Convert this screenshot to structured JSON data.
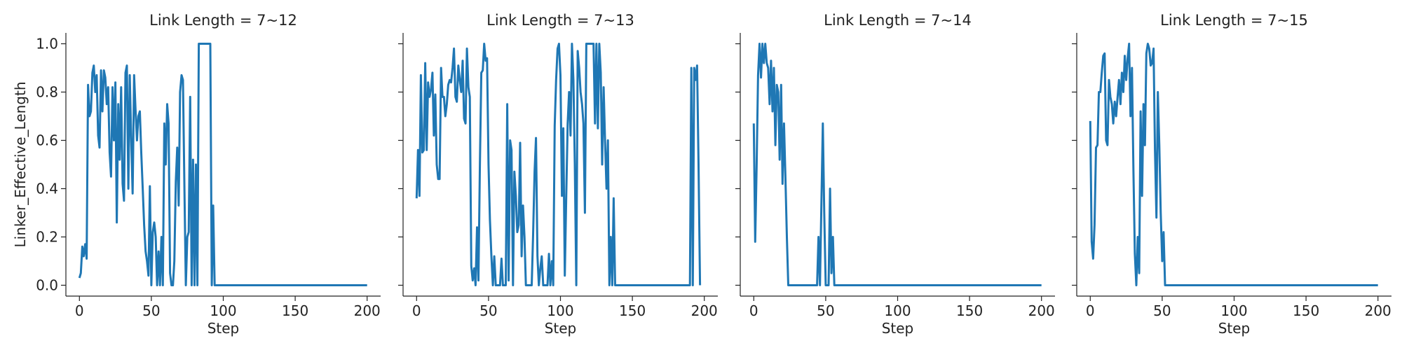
{
  "chart_data": [
    {
      "type": "line",
      "title": "Link Length = 7~12",
      "xlabel": "Step",
      "ylabel": "Linker_Effective_Length",
      "color": "#1f77b4",
      "xlim": [
        -9.4,
        209.4
      ],
      "xticks": [
        0,
        50,
        100,
        150,
        200
      ],
      "ylim": [
        -0.045,
        1.045
      ],
      "yticks": [
        {
          "value": 0,
          "label": "0.0"
        },
        {
          "value": 0.2,
          "label": "0.2"
        },
        {
          "value": 0.4,
          "label": "0.4"
        },
        {
          "value": 0.6,
          "label": "0.6"
        },
        {
          "value": 0.8,
          "label": "0.8"
        },
        {
          "value": 1,
          "label": "1.0"
        }
      ],
      "x": [
        0,
        1,
        2,
        3,
        4,
        5,
        6,
        7,
        8,
        9,
        10,
        11,
        12,
        13,
        14,
        15,
        16,
        17,
        18,
        19,
        20,
        21,
        22,
        23,
        24,
        25,
        26,
        27,
        28,
        29,
        30,
        31,
        32,
        33,
        34,
        35,
        36,
        37,
        38,
        39,
        40,
        41,
        42,
        43,
        44,
        45,
        46,
        47,
        48,
        49,
        50,
        51,
        52,
        53,
        54,
        55,
        56,
        57,
        58,
        59,
        60,
        61,
        62,
        63,
        64,
        65,
        66,
        67,
        68,
        69,
        70,
        71,
        72,
        73,
        74,
        75,
        76,
        77,
        78,
        79,
        80,
        81,
        82,
        83,
        84,
        85,
        86,
        87,
        88,
        89,
        90,
        91,
        92,
        93,
        94,
        200
      ],
      "values": [
        0.03,
        0.05,
        0.16,
        0.12,
        0.17,
        0.11,
        0.83,
        0.7,
        0.72,
        0.88,
        0.91,
        0.8,
        0.87,
        0.62,
        0.57,
        0.89,
        0.72,
        0.89,
        0.86,
        0.75,
        0.82,
        0.55,
        0.45,
        0.82,
        0.6,
        0.84,
        0.26,
        0.75,
        0.52,
        0.82,
        0.42,
        0.35,
        0.88,
        0.91,
        0.4,
        0.87,
        0.6,
        0.38,
        0.87,
        0.73,
        0.6,
        0.7,
        0.72,
        0.55,
        0.4,
        0.25,
        0.14,
        0.1,
        0.04,
        0.41,
        0,
        0.22,
        0.26,
        0.2,
        0,
        0.14,
        0,
        0.2,
        0,
        0.67,
        0.5,
        0.75,
        0.67,
        0.05,
        0,
        0,
        0.1,
        0.43,
        0.57,
        0.33,
        0.8,
        0.87,
        0.85,
        0.4,
        0,
        0.2,
        0.22,
        0.78,
        0,
        0.52,
        0,
        0.5,
        0,
        1,
        1,
        1,
        1,
        1,
        1,
        1,
        1,
        1,
        0,
        0.33,
        0,
        0
      ]
    },
    {
      "type": "line",
      "title": "Link Length = 7~13",
      "xlabel": "Step",
      "color": "#1f77b4",
      "xlim": [
        -9.4,
        209.4
      ],
      "xticks": [
        0,
        50,
        100,
        150,
        200
      ],
      "ylim": [
        -0.045,
        1.045
      ],
      "x": [
        0,
        1,
        2,
        3,
        4,
        5,
        6,
        7,
        8,
        9,
        10,
        11,
        12,
        13,
        14,
        15,
        16,
        17,
        18,
        19,
        20,
        21,
        22,
        23,
        24,
        25,
        26,
        27,
        28,
        29,
        30,
        31,
        32,
        33,
        34,
        35,
        36,
        37,
        38,
        39,
        40,
        41,
        42,
        43,
        44,
        45,
        46,
        47,
        48,
        49,
        50,
        51,
        52,
        53,
        54,
        55,
        56,
        57,
        58,
        59,
        60,
        61,
        62,
        63,
        64,
        65,
        66,
        67,
        68,
        69,
        70,
        71,
        72,
        73,
        74,
        75,
        76,
        80,
        81,
        82,
        83,
        84,
        85,
        86,
        87,
        88,
        89,
        90,
        91,
        92,
        93,
        94,
        95,
        96,
        97,
        98,
        99,
        100,
        101,
        102,
        103,
        104,
        105,
        106,
        107,
        108,
        109,
        110,
        111,
        112,
        113,
        114,
        115,
        116,
        117,
        118,
        119,
        120,
        121,
        122,
        123,
        124,
        125,
        126,
        127,
        128,
        129,
        130,
        131,
        132,
        133,
        134,
        135,
        136,
        137,
        138,
        139,
        190,
        191,
        192,
        193,
        194,
        195,
        196,
        197
      ],
      "values": [
        0.36,
        0.56,
        0.37,
        0.87,
        0.55,
        0.56,
        0.92,
        0.56,
        0.84,
        0.78,
        0.81,
        0.88,
        0.62,
        0.79,
        0.5,
        0.44,
        0.44,
        0.9,
        0.78,
        0.78,
        0.7,
        0.75,
        0.83,
        0.85,
        0.84,
        0.9,
        0.98,
        0.78,
        0.76,
        0.91,
        0.85,
        0.8,
        0.93,
        0.69,
        0.67,
        0.98,
        0.82,
        0.78,
        0.08,
        0.02,
        0.07,
        0,
        0.24,
        0.02,
        0.5,
        0.88,
        0.89,
        1,
        0.93,
        0.94,
        0.5,
        0.27,
        0.12,
        0,
        0.12,
        0,
        0,
        0,
        0,
        0.11,
        0,
        0,
        0,
        0.75,
        0.02,
        0.6,
        0.56,
        0,
        0.47,
        0.37,
        0.22,
        0.25,
        0.59,
        0.12,
        0.33,
        0.2,
        0,
        0,
        0.21,
        0.47,
        0.61,
        0.12,
        0,
        0.07,
        0.12,
        0,
        0,
        0,
        0,
        0.13,
        0,
        0.1,
        0,
        0.66,
        0.85,
        0.98,
        1,
        0.87,
        0.37,
        0.65,
        0.04,
        0.36,
        0.67,
        0.8,
        0.62,
        1,
        0.85,
        0.5,
        0,
        0.97,
        0.9,
        0.8,
        0.75,
        0.67,
        0.3,
        1,
        1,
        1,
        1,
        1,
        1,
        0.67,
        1,
        0.65,
        1,
        0.88,
        0.5,
        0.82,
        0.6,
        0.4,
        0.6,
        0,
        0.2,
        0,
        0.36,
        0,
        0,
        0,
        0.9,
        0,
        0.9,
        0.85,
        0.91,
        0.5,
        0
      ]
    },
    {
      "type": "line",
      "title": "Link Length = 7~14",
      "xlabel": "Step",
      "color": "#1f77b4",
      "xlim": [
        -9.4,
        209.4
      ],
      "xticks": [
        0,
        50,
        100,
        150,
        200
      ],
      "ylim": [
        -0.045,
        1.045
      ],
      "x": [
        0,
        1,
        2,
        3,
        4,
        5,
        6,
        7,
        8,
        9,
        10,
        11,
        12,
        13,
        14,
        15,
        16,
        17,
        18,
        19,
        20,
        21,
        22,
        23,
        24,
        25,
        44,
        45,
        46,
        48,
        49,
        50,
        52,
        53,
        54,
        55,
        56,
        200
      ],
      "values": [
        0.67,
        0.18,
        0.5,
        0.87,
        1,
        0.86,
        1,
        0.92,
        1,
        0.92,
        0.9,
        0.75,
        0.93,
        0.72,
        0.9,
        0.58,
        0.83,
        0.8,
        0.52,
        0.83,
        0.42,
        0.67,
        0.45,
        0.2,
        0,
        0,
        0,
        0.2,
        0,
        0.67,
        0.3,
        0,
        0,
        0.4,
        0.05,
        0.2,
        0,
        0
      ]
    },
    {
      "type": "line",
      "title": "Link Length = 7~15",
      "xlabel": "Step",
      "color": "#1f77b4",
      "xlim": [
        -9.4,
        209.4
      ],
      "xticks": [
        0,
        50,
        100,
        150,
        200
      ],
      "ylim": [
        -0.045,
        1.045
      ],
      "x": [
        0,
        1,
        2,
        3,
        4,
        5,
        6,
        7,
        8,
        9,
        10,
        11,
        12,
        13,
        14,
        15,
        16,
        17,
        18,
        19,
        20,
        21,
        22,
        23,
        24,
        25,
        26,
        27,
        28,
        29,
        30,
        31,
        32,
        33,
        34,
        35,
        36,
        37,
        38,
        39,
        40,
        41,
        42,
        43,
        44,
        45,
        46,
        47,
        48,
        49,
        50,
        51,
        52,
        53,
        200
      ],
      "values": [
        0.68,
        0.18,
        0.11,
        0.25,
        0.57,
        0.58,
        0.8,
        0.8,
        0.88,
        0.95,
        0.96,
        0.6,
        0.58,
        0.85,
        0.78,
        0.75,
        0.67,
        0.76,
        0.7,
        0.78,
        0.85,
        0.75,
        0.88,
        0.8,
        0.95,
        0.85,
        0.94,
        1,
        0.7,
        0.9,
        0.47,
        0.13,
        0,
        0.2,
        0.05,
        0.72,
        0.37,
        0.75,
        0.58,
        0.96,
        1,
        0.98,
        0.91,
        0.92,
        0.98,
        0.56,
        0.28,
        0.8,
        0.58,
        0.3,
        0.1,
        0.22,
        0,
        0,
        0
      ]
    }
  ]
}
